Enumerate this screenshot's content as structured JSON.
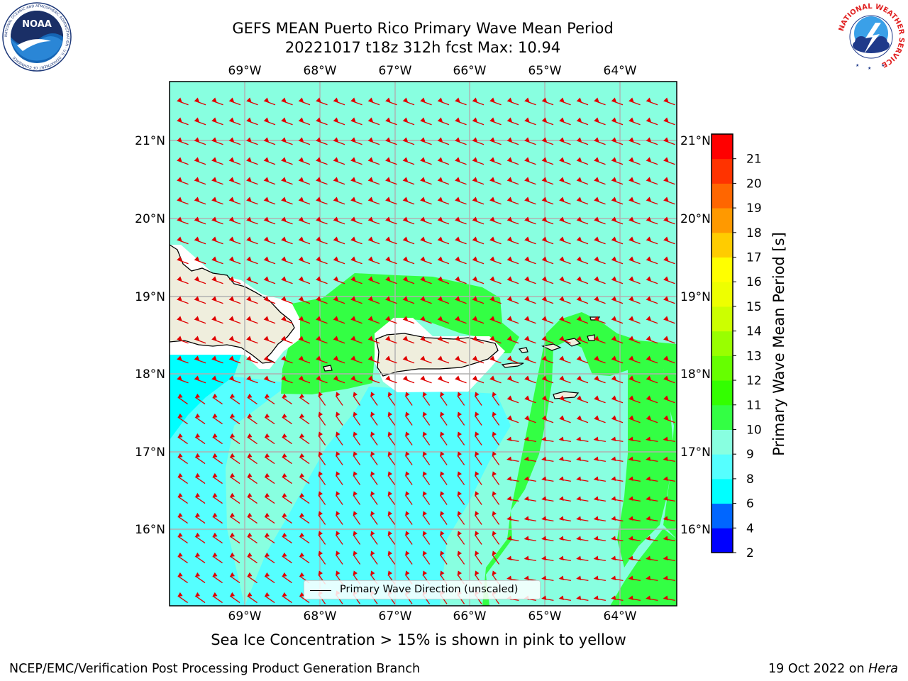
{
  "title": {
    "line1": "GEFS MEAN Puerto Rico Primary Wave Mean Period",
    "line2": "20221017 t18z 312h fcst   Max: 10.94"
  },
  "map": {
    "lon_labels": [
      "69°W",
      "68°W",
      "67°W",
      "66°W",
      "65°W",
      "64°W"
    ],
    "lat_labels": [
      "21°N",
      "20°N",
      "19°N",
      "18°N",
      "17°N",
      "16°N"
    ],
    "colors": {
      "land": "#efeedd",
      "arrow": "#e00000",
      "grid": "#b0b0b0"
    }
  },
  "legend": {
    "label": "Primary Wave Direction (unscaled)"
  },
  "colorbar": {
    "label": "Primary Wave Mean Period [s]",
    "ticks": [
      "2",
      "4",
      "6",
      "8",
      "9",
      "10",
      "11",
      "12",
      "13",
      "14",
      "15",
      "16",
      "17",
      "18",
      "19",
      "20",
      "21"
    ],
    "colors": [
      "#0000ff",
      "#0066ff",
      "#00ffff",
      "#55ffff",
      "#88ffe0",
      "#33ff44",
      "#33ff00",
      "#66ff00",
      "#99ff00",
      "#ccff00",
      "#eeff00",
      "#ffff00",
      "#ffcc00",
      "#ff9900",
      "#ff6600",
      "#ff3300",
      "#ff0000"
    ]
  },
  "caption": "Sea Ice Concentration > 15% is shown in pink to yellow",
  "footer": {
    "left": "NCEP/EMC/Verification Post Processing Product Generation Branch",
    "right_date": "19 Oct 2022 on ",
    "right_host": "Hera"
  },
  "logos": {
    "noaa": "NOAA",
    "noaa_ring": "NATIONAL OCEANIC AND ATMOSPHERIC ADMINISTRATION · U.S. DEPARTMENT OF COMMERCE",
    "nws_ring": "NATIONAL WEATHER SERVICE"
  }
}
